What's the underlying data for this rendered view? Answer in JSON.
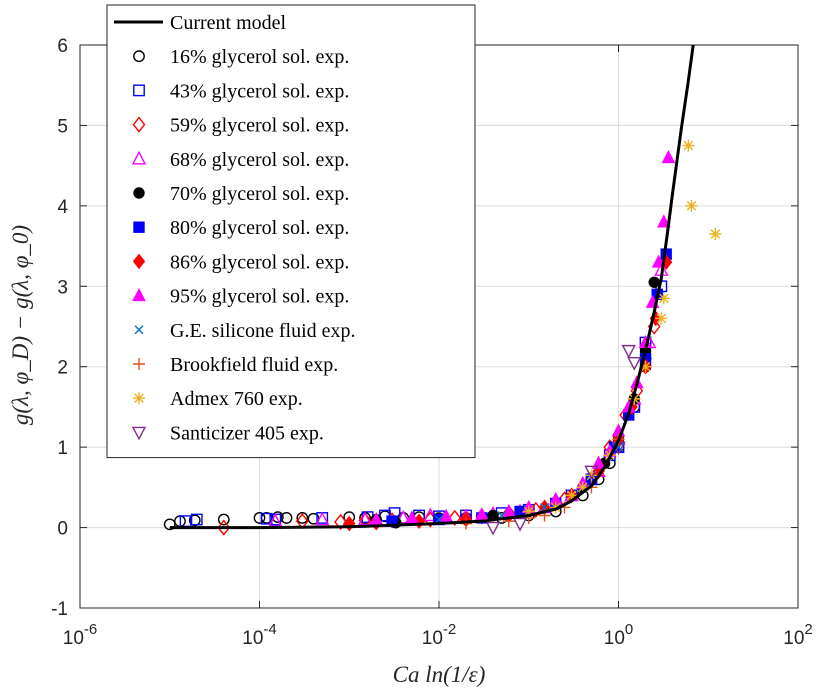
{
  "chart_data": {
    "type": "scatter",
    "title": "",
    "xlabel": "Ca ln(1/ε)",
    "ylabel": "g(λ, φ_D) − g(λ, φ_0)",
    "xscale": "log",
    "xlim": [
      1e-06,
      100
    ],
    "ylim": [
      -1,
      6
    ],
    "grid": true,
    "legend_position": "top-left",
    "x_ticks": [
      {
        "value": 1e-06,
        "base": "10",
        "exp": "-6"
      },
      {
        "value": 0.0001,
        "base": "10",
        "exp": "-4"
      },
      {
        "value": 0.01,
        "base": "10",
        "exp": "-2"
      },
      {
        "value": 1,
        "base": "10",
        "exp": "0"
      },
      {
        "value": 100,
        "base": "10",
        "exp": "2"
      }
    ],
    "y_ticks": [
      "-1",
      "0",
      "1",
      "2",
      "3",
      "4",
      "5",
      "6"
    ],
    "series": [
      {
        "name": "Current model",
        "marker": "line",
        "color": "#000000",
        "x": [
          1e-05,
          0.0001,
          0.001,
          0.01,
          0.03,
          0.1,
          0.2,
          0.3,
          0.5,
          0.7,
          1.0,
          1.3,
          1.6,
          2.0,
          2.5,
          3.0,
          3.5,
          4.0,
          5.0,
          6.0,
          6.8
        ],
        "y": [
          0.0,
          0.0,
          0.01,
          0.05,
          0.08,
          0.15,
          0.23,
          0.33,
          0.52,
          0.75,
          1.08,
          1.42,
          1.78,
          2.2,
          2.68,
          3.1,
          3.65,
          4.15,
          4.95,
          5.55,
          6.0
        ]
      },
      {
        "name": "16% glycerol sol. exp.",
        "marker": "circle-open",
        "color": "#000000",
        "x": [
          1e-05,
          1.3e-05,
          1.9e-05,
          4e-05,
          0.0001,
          0.00012,
          0.00016,
          0.0002,
          0.0003,
          0.0004,
          0.001,
          0.0015,
          0.0025,
          0.004,
          0.006,
          0.02,
          0.05,
          0.1,
          0.2,
          0.4,
          0.6,
          0.8,
          1.0,
          1.5,
          2.0
        ],
        "y": [
          0.04,
          0.08,
          0.09,
          0.1,
          0.12,
          0.12,
          0.13,
          0.12,
          0.12,
          0.11,
          0.13,
          0.12,
          0.14,
          0.12,
          0.13,
          0.12,
          0.12,
          0.15,
          0.2,
          0.4,
          0.6,
          0.8,
          1.0,
          1.5,
          2.0
        ]
      },
      {
        "name": "43% glycerol sol. exp.",
        "marker": "square-open",
        "color": "#0000ff",
        "x": [
          1.5e-05,
          2e-05,
          0.00012,
          0.00015,
          0.0005,
          0.0016,
          0.0025,
          0.0032,
          0.006,
          0.01,
          0.02,
          0.05,
          0.1,
          0.3,
          0.5,
          0.8,
          1.0,
          1.5,
          2.0,
          3.0
        ],
        "y": [
          0.08,
          0.1,
          0.11,
          0.1,
          0.12,
          0.13,
          0.15,
          0.18,
          0.15,
          0.14,
          0.15,
          0.18,
          0.22,
          0.4,
          0.6,
          0.9,
          1.0,
          1.5,
          2.3,
          3.0
        ]
      },
      {
        "name": "59% glycerol sol. exp.",
        "marker": "diamond-open",
        "color": "#ff0000",
        "x": [
          4e-05,
          0.0003,
          0.0008,
          0.0015,
          0.003,
          0.008,
          0.015,
          0.03,
          0.06,
          0.12,
          0.25,
          0.5,
          0.8,
          1.2,
          1.6,
          2.0,
          2.5
        ],
        "y": [
          0.0,
          0.08,
          0.07,
          0.09,
          0.09,
          0.1,
          0.12,
          0.14,
          0.18,
          0.22,
          0.35,
          0.6,
          1.0,
          1.4,
          1.7,
          2.1,
          2.5
        ]
      },
      {
        "name": "68% glycerol sol. exp.",
        "marker": "triangle-up-open",
        "color": "#ff00ff",
        "x": [
          0.00015,
          0.0005,
          0.0015,
          0.004,
          0.008,
          0.02,
          0.04,
          0.08,
          0.15,
          0.3,
          0.6,
          1.0,
          1.5,
          2.2,
          3.0
        ],
        "y": [
          0.08,
          0.1,
          0.1,
          0.12,
          0.15,
          0.14,
          0.17,
          0.2,
          0.25,
          0.4,
          0.7,
          1.1,
          1.6,
          2.3,
          3.2
        ]
      },
      {
        "name": "70% glycerol sol. exp.",
        "marker": "circle-filled",
        "color": "#000000",
        "x": [
          0.002,
          0.0033,
          0.01,
          0.04,
          0.1,
          0.2,
          0.4,
          0.7,
          1.0,
          1.5,
          2.0,
          2.5
        ],
        "y": [
          0.1,
          0.06,
          0.12,
          0.15,
          0.2,
          0.3,
          0.5,
          0.8,
          1.1,
          1.6,
          2.2,
          3.05
        ]
      },
      {
        "name": "80% glycerol sol. exp.",
        "marker": "square-filled",
        "color": "#0000ff",
        "x": [
          0.003,
          0.01,
          0.03,
          0.08,
          0.2,
          0.5,
          0.9,
          1.3,
          2.0,
          2.7,
          3.4
        ],
        "y": [
          0.08,
          0.1,
          0.12,
          0.2,
          0.3,
          0.6,
          1.0,
          1.4,
          2.1,
          2.9,
          3.4
        ]
      },
      {
        "name": "86% glycerol sol. exp.",
        "marker": "diamond-filled",
        "color": "#ff0000",
        "x": [
          0.001,
          0.002,
          0.006,
          0.02,
          0.06,
          0.15,
          0.3,
          0.6,
          1.0,
          1.4,
          2.0,
          2.6,
          3.4
        ],
        "y": [
          0.05,
          0.06,
          0.08,
          0.1,
          0.15,
          0.25,
          0.4,
          0.7,
          1.1,
          1.5,
          2.0,
          2.6,
          3.3
        ]
      },
      {
        "name": "95% glycerol sol. exp.",
        "marker": "triangle-up-filled",
        "color": "#ff00ff",
        "x": [
          0.002,
          0.005,
          0.012,
          0.03,
          0.06,
          0.1,
          0.2,
          0.4,
          0.6,
          0.8,
          1.0,
          1.3,
          1.6,
          2.0,
          2.4,
          2.8,
          3.2,
          3.6
        ],
        "y": [
          0.1,
          0.12,
          0.14,
          0.16,
          0.2,
          0.25,
          0.35,
          0.55,
          0.8,
          0.95,
          1.2,
          1.5,
          1.8,
          2.3,
          2.8,
          3.3,
          3.8,
          4.6
        ]
      },
      {
        "name": "G.E. silicone fluid exp.",
        "marker": "x",
        "color": "#0072bd",
        "x": [
          0.01,
          0.05,
          0.15,
          0.4,
          1.0
        ],
        "y": [
          0.1,
          0.15,
          0.25,
          0.5,
          1.0
        ]
      },
      {
        "name": "Brookfield fluid exp.",
        "marker": "plus",
        "color": "#d95319",
        "x": [
          0.02,
          0.06,
          0.1,
          0.15,
          0.25,
          0.5,
          1.0,
          1.5
        ],
        "y": [
          0.05,
          0.08,
          0.12,
          0.15,
          0.25,
          0.5,
          1.1,
          1.6
        ]
      },
      {
        "name": "Admex 760 exp.",
        "marker": "asterisk",
        "color": "#edb120",
        "x": [
          0.1,
          0.2,
          0.3,
          0.4,
          0.5,
          0.8,
          1.5,
          2.0,
          3.0,
          3.2,
          6.0,
          6.5,
          12.0
        ],
        "y": [
          0.2,
          0.25,
          0.4,
          0.5,
          0.65,
          0.9,
          1.6,
          2.0,
          2.6,
          2.85,
          4.75,
          4.0,
          3.65
        ]
      },
      {
        "name": "Santicizer 405 exp.",
        "marker": "triangle-down-open",
        "color": "#7e2f8e",
        "x": [
          0.04,
          0.08,
          0.5,
          1.0,
          1.3,
          1.5
        ],
        "y": [
          0.0,
          0.05,
          0.7,
          1.0,
          2.2,
          2.05
        ]
      }
    ]
  }
}
